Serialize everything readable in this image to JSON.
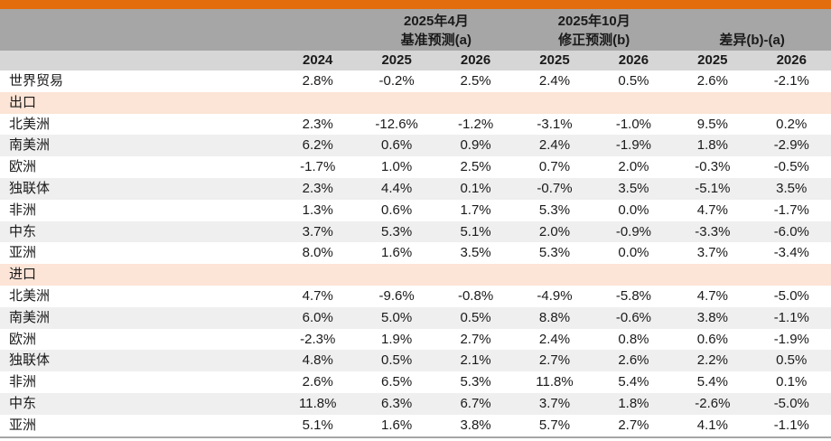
{
  "chart_data": {
    "type": "table",
    "group_headers": [
      {
        "line1": "2025年4月",
        "line2": "基准预测(a)"
      },
      {
        "line1": "2025年10月",
        "line2": "修正预测(b)"
      },
      {
        "line1": "",
        "line2": "差异(b)-(a)"
      }
    ],
    "columns": [
      "2024",
      "2025",
      "2026",
      "2025",
      "2026",
      "2025",
      "2026"
    ],
    "rows": [
      {
        "label": "世界贸易",
        "type": "data",
        "values": [
          "2.8%",
          "-0.2%",
          "2.5%",
          "2.4%",
          "0.5%",
          "2.6%",
          "-2.1%"
        ]
      },
      {
        "label": "出口",
        "type": "section",
        "values": []
      },
      {
        "label": "北美洲",
        "type": "data",
        "values": [
          "2.3%",
          "-12.6%",
          "-1.2%",
          "-3.1%",
          "-1.0%",
          "9.5%",
          "0.2%"
        ]
      },
      {
        "label": "南美洲",
        "type": "data",
        "values": [
          "6.2%",
          "0.6%",
          "0.9%",
          "2.4%",
          "-1.9%",
          "1.8%",
          "-2.9%"
        ]
      },
      {
        "label": "欧洲",
        "type": "data",
        "values": [
          "-1.7%",
          "1.0%",
          "2.5%",
          "0.7%",
          "2.0%",
          "-0.3%",
          "-0.5%"
        ]
      },
      {
        "label": "独联体",
        "type": "data",
        "values": [
          "2.3%",
          "4.4%",
          "0.1%",
          "-0.7%",
          "3.5%",
          "-5.1%",
          "3.5%"
        ]
      },
      {
        "label": "非洲",
        "type": "data",
        "values": [
          "1.3%",
          "0.6%",
          "1.7%",
          "5.3%",
          "0.0%",
          "4.7%",
          "-1.7%"
        ]
      },
      {
        "label": "中东",
        "type": "data",
        "values": [
          "3.7%",
          "5.3%",
          "5.1%",
          "2.0%",
          "-0.9%",
          "-3.3%",
          "-6.0%"
        ]
      },
      {
        "label": "亚洲",
        "type": "data",
        "values": [
          "8.0%",
          "1.6%",
          "3.5%",
          "5.3%",
          "0.0%",
          "3.7%",
          "-3.4%"
        ]
      },
      {
        "label": "进口",
        "type": "section",
        "values": []
      },
      {
        "label": "北美洲",
        "type": "data",
        "values": [
          "4.7%",
          "-9.6%",
          "-0.8%",
          "-4.9%",
          "-5.8%",
          "4.7%",
          "-5.0%"
        ]
      },
      {
        "label": "南美洲",
        "type": "data",
        "values": [
          "6.0%",
          "5.0%",
          "0.5%",
          "8.8%",
          "-0.6%",
          "3.8%",
          "-1.1%"
        ]
      },
      {
        "label": "欧洲",
        "type": "data",
        "values": [
          "-2.3%",
          "1.9%",
          "2.7%",
          "2.4%",
          "0.8%",
          "0.6%",
          "-1.9%"
        ]
      },
      {
        "label": "独联体",
        "type": "data",
        "values": [
          "4.8%",
          "0.5%",
          "2.1%",
          "2.7%",
          "2.6%",
          "2.2%",
          "0.5%"
        ]
      },
      {
        "label": "非洲",
        "type": "data",
        "values": [
          "2.6%",
          "6.5%",
          "5.3%",
          "11.8%",
          "5.4%",
          "5.4%",
          "0.1%"
        ]
      },
      {
        "label": "中东",
        "type": "data",
        "values": [
          "11.8%",
          "6.3%",
          "6.7%",
          "3.7%",
          "1.8%",
          "-2.6%",
          "-5.0%"
        ]
      },
      {
        "label": "亚洲",
        "type": "data",
        "values": [
          "5.1%",
          "1.6%",
          "3.8%",
          "5.7%",
          "2.7%",
          "4.1%",
          "-1.1%"
        ]
      }
    ]
  },
  "colors": {
    "accent_orange": "#E36D0C",
    "header_gray": "#A6A6A6",
    "subheader_gray": "#D6D6D6",
    "section_peach": "#FCE4D6",
    "zebra_gray": "#EFEFEF",
    "text": "#1A1A1A",
    "bottom_border": "#A6A6A6"
  }
}
